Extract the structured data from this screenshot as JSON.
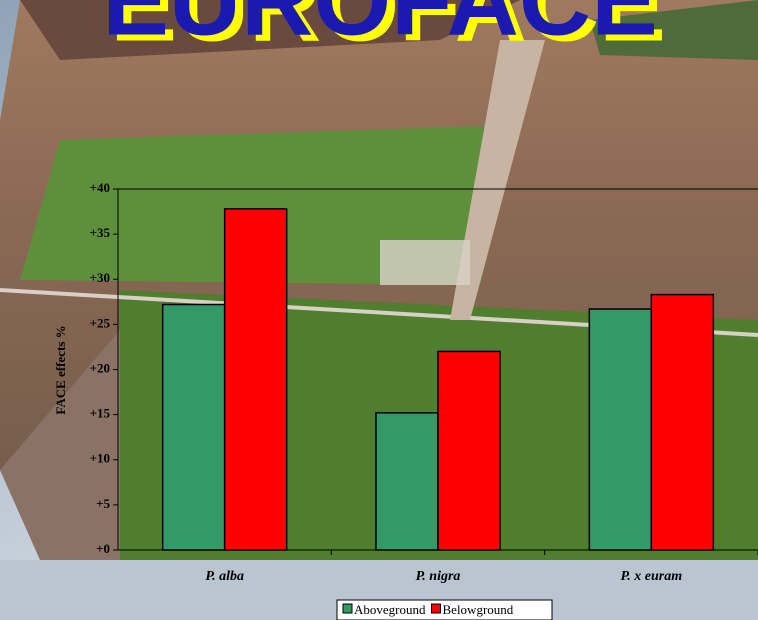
{
  "chart_data": {
    "type": "bar",
    "title": "EUROFACE",
    "categories": [
      "P. alba",
      "P. nigra",
      "P. x euram"
    ],
    "series": [
      {
        "name": "Aboveground",
        "color": "#339966",
        "values": [
          27.2,
          15.2,
          26.7
        ]
      },
      {
        "name": "Belowground",
        "color": "#ff0000",
        "values": [
          37.8,
          22.0,
          28.3
        ]
      }
    ],
    "ylabel": "FACE effects %",
    "ylim": [
      0,
      40
    ],
    "yticks": [
      {
        "value": 0,
        "label": "+0"
      },
      {
        "value": 5,
        "label": "+5"
      },
      {
        "value": 10,
        "label": "+10"
      },
      {
        "value": 15,
        "label": "+15"
      },
      {
        "value": 20,
        "label": "+20"
      },
      {
        "value": 25,
        "label": "+25"
      },
      {
        "value": 30,
        "label": "+30"
      },
      {
        "value": 35,
        "label": "+35"
      },
      {
        "value": 40,
        "label": "+40"
      }
    ],
    "legend": "bottom"
  }
}
